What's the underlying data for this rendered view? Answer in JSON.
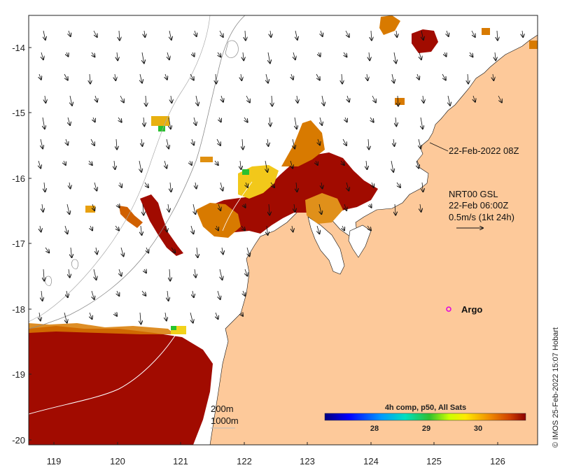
{
  "map": {
    "timestamp_label": "22-Feb-2022 08Z",
    "current_legend": {
      "line1": "NRT00 GSL",
      "line2": "22-Feb 06:00Z",
      "line3": "0.5m/s (1kt 24h)"
    },
    "argo_label": "Argo",
    "contour_legend": {
      "line1": "200m",
      "line2": "1000m"
    },
    "colorbar": {
      "title": "4h comp, p50, All Sats",
      "ticks": [
        "28",
        "29",
        "30"
      ]
    },
    "credit": "© IMOS 25-Feb-2022 15:07 Hobart",
    "x_ticks": [
      "119",
      "120",
      "121",
      "122",
      "123",
      "124",
      "125",
      "126"
    ],
    "y_ticks": [
      "-14",
      "-15",
      "-16",
      "-17",
      "-18",
      "-19",
      "-20"
    ],
    "colors": {
      "land": "#fdc99a",
      "hot": "#a10b00",
      "warm": "#d87a00",
      "yellow": "#f2d21a",
      "green": "#27c42c",
      "argo": "#e000e0"
    }
  }
}
